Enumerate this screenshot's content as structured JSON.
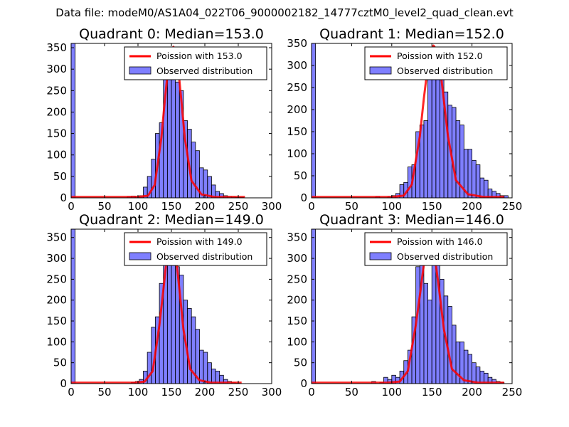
{
  "figure": {
    "suptitle": "Data file: modeM0/AS1A04_022T06_9000002182_14777cztM0_level2_quad_clean.evt"
  },
  "chart_data": [
    {
      "type": "bar",
      "title": "Quadrant 0: Median=153.0",
      "xlim": [
        0,
        300
      ],
      "ylim": [
        0,
        360
      ],
      "xticks": [
        0,
        50,
        100,
        150,
        200,
        250,
        300
      ],
      "yticks": [
        0,
        50,
        100,
        150,
        200,
        250,
        300,
        350
      ],
      "legend": [
        "Poission with 153.0",
        "Observed distribution"
      ],
      "legend_location": "upper right",
      "median": 153.0,
      "bin_width": 6,
      "hist_bins_start": [
        0,
        84,
        90,
        96,
        102,
        108,
        114,
        120,
        126,
        132,
        138,
        144,
        150,
        156,
        162,
        168,
        174,
        180,
        186,
        192,
        198,
        204,
        210,
        216,
        222,
        228,
        234,
        240,
        246,
        252
      ],
      "hist_counts": [
        360,
        3,
        4,
        3,
        5,
        25,
        50,
        90,
        150,
        175,
        345,
        340,
        320,
        270,
        250,
        180,
        160,
        130,
        110,
        70,
        65,
        50,
        30,
        15,
        10,
        5,
        3,
        2,
        1,
        1
      ],
      "poisson_x": [
        0,
        100,
        115,
        125,
        135,
        140,
        145,
        150,
        153,
        156,
        160,
        165,
        170,
        180,
        195,
        215,
        260
      ],
      "poisson_y": [
        2,
        2,
        5,
        30,
        140,
        225,
        300,
        345,
        352,
        345,
        305,
        225,
        140,
        40,
        8,
        2,
        2
      ]
    },
    {
      "type": "bar",
      "title": "Quadrant 1: Median=152.0",
      "xlim": [
        0,
        250
      ],
      "ylim": [
        0,
        350
      ],
      "xticks": [
        0,
        50,
        100,
        150,
        200,
        250
      ],
      "yticks": [
        0,
        50,
        100,
        150,
        200,
        250,
        300,
        350
      ],
      "legend": [
        "Poission with 152.0",
        "Observed distribution"
      ],
      "legend_location": "upper right",
      "median": 152.0,
      "bin_width": 5,
      "hist_bins_start": [
        0,
        80,
        95,
        100,
        105,
        110,
        115,
        120,
        125,
        130,
        135,
        140,
        145,
        150,
        155,
        160,
        165,
        170,
        175,
        180,
        185,
        190,
        195,
        200,
        205,
        210,
        215,
        220,
        225,
        230,
        235,
        240
      ],
      "hist_counts": [
        350,
        3,
        3,
        5,
        10,
        30,
        35,
        70,
        75,
        150,
        165,
        175,
        300,
        290,
        330,
        290,
        240,
        210,
        205,
        175,
        165,
        110,
        110,
        85,
        75,
        45,
        40,
        20,
        15,
        10,
        5,
        5
      ],
      "poisson_x": [
        0,
        100,
        115,
        125,
        135,
        140,
        145,
        150,
        152,
        155,
        160,
        165,
        170,
        180,
        195,
        215,
        240
      ],
      "poisson_y": [
        2,
        2,
        5,
        30,
        140,
        225,
        300,
        340,
        345,
        338,
        300,
        220,
        140,
        40,
        8,
        2,
        2
      ]
    },
    {
      "type": "bar",
      "title": "Quadrant 2: Median=149.0",
      "xlim": [
        0,
        300
      ],
      "ylim": [
        0,
        370
      ],
      "xticks": [
        0,
        50,
        100,
        150,
        200,
        250,
        300
      ],
      "yticks": [
        0,
        50,
        100,
        150,
        200,
        250,
        300,
        350
      ],
      "legend": [
        "Poission with 149.0",
        "Observed distribution"
      ],
      "legend_location": "upper right",
      "median": 149.0,
      "bin_width": 6,
      "hist_bins_start": [
        0,
        90,
        96,
        102,
        108,
        114,
        120,
        126,
        132,
        138,
        144,
        150,
        156,
        162,
        168,
        174,
        180,
        186,
        192,
        198,
        204,
        210,
        216,
        222,
        228,
        234,
        240,
        246
      ],
      "hist_counts": [
        370,
        3,
        5,
        10,
        30,
        75,
        135,
        160,
        240,
        345,
        350,
        320,
        280,
        260,
        200,
        180,
        160,
        130,
        80,
        75,
        50,
        35,
        30,
        20,
        10,
        5,
        2,
        1
      ],
      "poisson_x": [
        0,
        95,
        110,
        122,
        132,
        138,
        143,
        147,
        149,
        152,
        157,
        162,
        168,
        178,
        192,
        210,
        255
      ],
      "poisson_y": [
        2,
        2,
        5,
        30,
        140,
        225,
        300,
        345,
        355,
        345,
        300,
        225,
        130,
        35,
        8,
        2,
        2
      ]
    },
    {
      "type": "bar",
      "title": "Quadrant 3: Median=146.0",
      "xlim": [
        0,
        250
      ],
      "ylim": [
        0,
        370
      ],
      "xticks": [
        0,
        50,
        100,
        150,
        200,
        250
      ],
      "yticks": [
        0,
        50,
        100,
        150,
        200,
        250,
        300,
        350
      ],
      "legend": [
        "Poission with 146.0",
        "Observed distribution"
      ],
      "legend_location": "upper right",
      "median": 146.0,
      "bin_width": 5,
      "hist_bins_start": [
        0,
        75,
        85,
        90,
        95,
        100,
        105,
        110,
        115,
        120,
        125,
        130,
        135,
        140,
        145,
        150,
        155,
        160,
        165,
        170,
        175,
        180,
        185,
        190,
        195,
        200,
        205,
        210,
        215,
        220,
        225,
        230,
        235
      ],
      "hist_counts": [
        370,
        5,
        3,
        15,
        10,
        20,
        15,
        30,
        55,
        80,
        160,
        280,
        290,
        240,
        200,
        320,
        330,
        250,
        210,
        185,
        140,
        100,
        100,
        80,
        70,
        50,
        40,
        30,
        25,
        15,
        10,
        5,
        3
      ],
      "poisson_x": [
        0,
        95,
        110,
        120,
        130,
        136,
        141,
        145,
        146,
        149,
        154,
        159,
        165,
        175,
        190,
        208,
        240
      ],
      "poisson_y": [
        2,
        2,
        5,
        30,
        140,
        225,
        300,
        345,
        355,
        345,
        300,
        225,
        130,
        35,
        8,
        2,
        2
      ]
    }
  ]
}
